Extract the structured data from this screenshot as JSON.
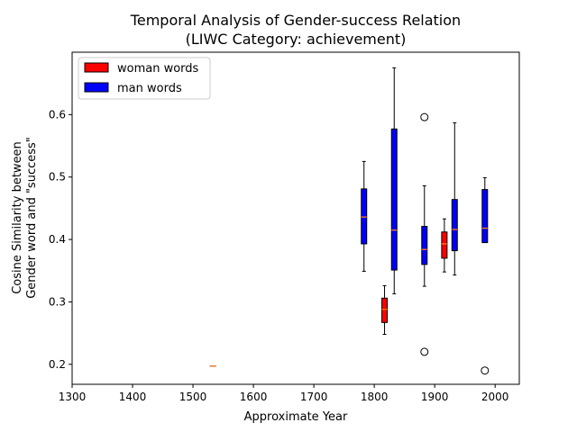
{
  "chart_data": {
    "type": "boxplot",
    "title": "Temporal Analysis of Gender-success Relation",
    "subtitle": "(LIWC Category: achievement)",
    "xlabel": "Approximate Year",
    "ylabel_line1": "Cosine Similarity between",
    "ylabel_line2": "Gender word and \"success\"",
    "xlim": [
      1300,
      2040
    ],
    "ylim": [
      0.168,
      0.7
    ],
    "xticks": [
      1300,
      1400,
      1500,
      1600,
      1700,
      1800,
      1900,
      2000
    ],
    "yticks": [
      0.2,
      0.3,
      0.4,
      0.5,
      0.6
    ],
    "ytick_labels": [
      "0.2",
      "0.3",
      "0.4",
      "0.5",
      "0.6"
    ],
    "legend_position": "top-left",
    "series": [
      {
        "name": "woman words",
        "color": "#ff0000",
        "boxes": [
          {
            "x": 1533,
            "whislo": 0.197,
            "q1": 0.197,
            "med": 0.197,
            "q3": 0.197,
            "whishi": 0.197,
            "fliers": []
          },
          {
            "x": 1817,
            "whislo": 0.248,
            "q1": 0.267,
            "med": 0.288,
            "q3": 0.306,
            "whishi": 0.326,
            "fliers": []
          },
          {
            "x": 1916,
            "whislo": 0.348,
            "q1": 0.37,
            "med": 0.393,
            "q3": 0.412,
            "whishi": 0.433,
            "fliers": []
          }
        ]
      },
      {
        "name": "man words",
        "color": "#0000ff",
        "boxes": [
          {
            "x": 1783,
            "whislo": 0.349,
            "q1": 0.393,
            "med": 0.436,
            "q3": 0.481,
            "whishi": 0.525,
            "fliers": []
          },
          {
            "x": 1833,
            "whislo": 0.313,
            "q1": 0.351,
            "med": 0.415,
            "q3": 0.577,
            "whishi": 0.675,
            "fliers": []
          },
          {
            "x": 1883,
            "whislo": 0.325,
            "q1": 0.36,
            "med": 0.384,
            "q3": 0.421,
            "whishi": 0.486,
            "fliers": [
              0.596,
              0.22
            ]
          },
          {
            "x": 1933,
            "whislo": 0.343,
            "q1": 0.382,
            "med": 0.416,
            "q3": 0.464,
            "whishi": 0.587,
            "fliers": []
          },
          {
            "x": 1983,
            "whislo": 0.395,
            "q1": 0.395,
            "med": 0.418,
            "q3": 0.48,
            "whishi": 0.499,
            "fliers": [
              0.19
            ]
          }
        ]
      }
    ],
    "median_color": "#ff7f0e"
  }
}
